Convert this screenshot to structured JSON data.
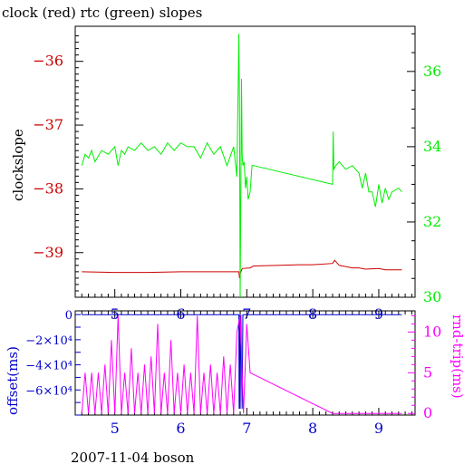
{
  "title": "clock (red) rtc (green) slopes",
  "footer": "2007-11-04 boson",
  "colors": {
    "clock": "#cc0000",
    "rtc": "#00ee00",
    "offset": "#0000cc",
    "roundtrip": "#ff00ff",
    "frame": "#000000"
  },
  "chart_data": [
    {
      "type": "line",
      "title": "clock (red) rtc (green) slopes",
      "ylabel": "clockslope",
      "xlim": [
        4.4,
        9.55
      ],
      "ylim": [
        -39.7,
        -35.45
      ],
      "y2lim": [
        30.0,
        37.2
      ],
      "x_ticks": [
        "5",
        "6",
        "7",
        "8",
        "9"
      ],
      "y_ticks": [
        "-36",
        "-37",
        "-38",
        "-39"
      ],
      "y2_ticks": [
        "36",
        "34",
        "32",
        "30"
      ],
      "series": [
        {
          "name": "clock",
          "axis": "left",
          "x": [
            4.5,
            5.0,
            5.5,
            6.0,
            6.5,
            6.88,
            6.89,
            6.9,
            6.93,
            7.05,
            7.1,
            7.5,
            7.8,
            8.0,
            8.3,
            8.33,
            8.4,
            8.6,
            8.7,
            8.8,
            9.0,
            9.1,
            9.2,
            9.35
          ],
          "values": [
            -39.3,
            -39.31,
            -39.31,
            -39.3,
            -39.3,
            -39.3,
            -39.4,
            -39.33,
            -39.25,
            -39.24,
            -39.21,
            -39.2,
            -39.19,
            -39.19,
            -39.17,
            -39.12,
            -39.2,
            -39.24,
            -39.24,
            -39.26,
            -39.25,
            -39.27,
            -39.27,
            -39.27
          ]
        },
        {
          "name": "rtc",
          "axis": "right",
          "x": [
            4.5,
            4.55,
            4.6,
            4.65,
            4.7,
            4.8,
            4.9,
            5.0,
            5.05,
            5.1,
            5.15,
            5.2,
            5.3,
            5.4,
            5.5,
            5.6,
            5.7,
            5.8,
            5.9,
            6.0,
            6.1,
            6.2,
            6.3,
            6.4,
            6.5,
            6.6,
            6.7,
            6.8,
            6.85,
            6.86,
            6.87,
            6.88,
            6.89,
            6.9,
            6.91,
            6.92,
            6.93,
            6.94,
            6.96,
            6.98,
            7.0,
            7.02,
            7.05,
            7.08,
            7.1,
            8.3,
            8.31,
            8.32,
            8.35,
            8.4,
            8.5,
            8.6,
            8.7,
            8.75,
            8.8,
            8.85,
            8.9,
            8.95,
            9.0,
            9.05,
            9.1,
            9.15,
            9.2,
            9.3,
            9.35
          ],
          "values": [
            33.5,
            33.8,
            33.7,
            33.9,
            33.6,
            33.9,
            33.8,
            34.0,
            33.5,
            33.9,
            33.8,
            34.0,
            33.9,
            34.1,
            33.9,
            34.0,
            33.8,
            34.1,
            33.9,
            34.1,
            34.0,
            34.0,
            33.7,
            34.1,
            33.8,
            34.0,
            33.5,
            34.0,
            33.2,
            34.5,
            35.7,
            37.0,
            35.0,
            30.0,
            33.0,
            35.8,
            33.8,
            33.5,
            33.6,
            32.9,
            33.2,
            32.6,
            32.8,
            33.5,
            33.5,
            33.0,
            34.4,
            33.4,
            33.5,
            33.6,
            33.4,
            33.5,
            33.3,
            32.9,
            33.3,
            32.8,
            32.8,
            32.4,
            33.0,
            32.5,
            32.9,
            32.6,
            32.8,
            32.9,
            32.8
          ]
        }
      ]
    },
    {
      "type": "line",
      "xlabel": "",
      "ylabel": "offset(ms)",
      "y2label": "rnd-trip(ms)",
      "xlim": [
        4.4,
        9.55
      ],
      "ylim": [
        -80000,
        3000
      ],
      "y2lim": [
        -0.2,
        12.6
      ],
      "x_ticks": [
        "5",
        "6",
        "7",
        "8",
        "9"
      ],
      "y_ticks": [
        "0",
        "-2×10⁴",
        "-4×10⁴",
        "-6×10⁴"
      ],
      "y2_ticks": [
        "10",
        "5",
        "0"
      ],
      "series": [
        {
          "name": "offset",
          "axis": "left",
          "x": [
            4.5,
            6.88,
            6.885,
            6.89,
            6.9,
            6.91,
            6.93,
            6.94,
            7.0,
            9.35
          ],
          "values": [
            0,
            0,
            -75000,
            0,
            -75000,
            0,
            -75000,
            0,
            0,
            0
          ]
        },
        {
          "name": "rnd-trip",
          "axis": "right",
          "x": [
            4.5,
            4.55,
            4.6,
            4.65,
            4.7,
            4.75,
            4.8,
            4.85,
            4.9,
            4.95,
            5.0,
            5.05,
            5.1,
            5.15,
            5.2,
            5.25,
            5.3,
            5.35,
            5.4,
            5.45,
            5.5,
            5.55,
            5.6,
            5.65,
            5.7,
            5.75,
            5.8,
            5.85,
            5.9,
            5.95,
            6.0,
            6.05,
            6.1,
            6.15,
            6.2,
            6.25,
            6.3,
            6.35,
            6.4,
            6.45,
            6.5,
            6.55,
            6.6,
            6.65,
            6.7,
            6.75,
            6.8,
            6.85,
            6.9,
            6.95,
            7.0,
            7.05,
            8.3,
            9.35
          ],
          "values": [
            0,
            5,
            0,
            5,
            0,
            5,
            0,
            6,
            0,
            9,
            0,
            12,
            0,
            5,
            0,
            8,
            0,
            5,
            0,
            6,
            0,
            7,
            0,
            11,
            0,
            5,
            0,
            9,
            0,
            5,
            0,
            6,
            0,
            5,
            0,
            12,
            0,
            5,
            0,
            6,
            0,
            5,
            0,
            7,
            0,
            6,
            0,
            10,
            12,
            0,
            11,
            5,
            0,
            0
          ]
        }
      ]
    }
  ]
}
